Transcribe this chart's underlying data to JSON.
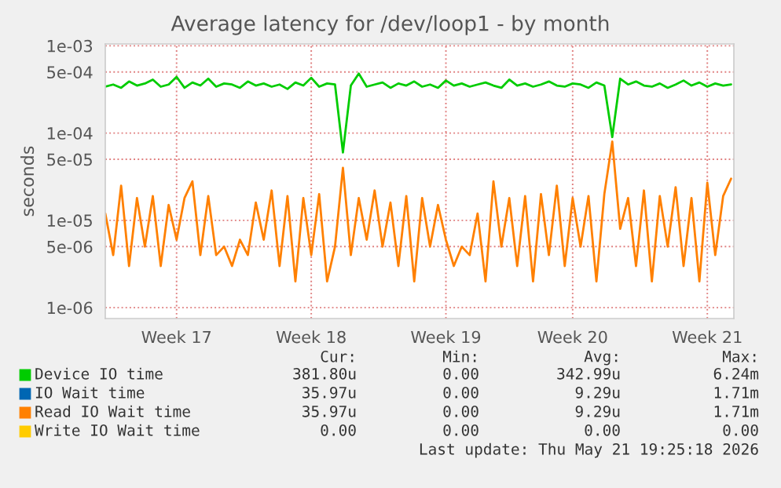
{
  "chart_data": {
    "type": "line",
    "title": "Average latency for /dev/loop1 - by month",
    "ylabel": "seconds",
    "log": "y",
    "categories": [
      null,
      null,
      null,
      null,
      null,
      null,
      null,
      null,
      null,
      "Week 17",
      null,
      null,
      null,
      null,
      null,
      null,
      null,
      null,
      null,
      null,
      null,
      null,
      null,
      null,
      null,
      null,
      "Week 18",
      null,
      null,
      null,
      null,
      null,
      null,
      null,
      null,
      null,
      null,
      null,
      null,
      null,
      null,
      null,
      null,
      "Week 19",
      null,
      null,
      null,
      null,
      null,
      null,
      null,
      null,
      null,
      null,
      null,
      null,
      null,
      null,
      null,
      "Week 20",
      null,
      null,
      null,
      null,
      null,
      null,
      null,
      null,
      null,
      null,
      null,
      null,
      null,
      null,
      null,
      null,
      "Week 21",
      null,
      null,
      null
    ],
    "series": [
      {
        "name": "Device IO time",
        "color": "#00cc00",
        "values": [
          0.00034,
          0.00036,
          0.00033,
          0.00039,
          0.00035,
          0.00037,
          0.00041,
          0.00034,
          0.00036,
          0.00044,
          0.00033,
          0.00038,
          0.00035,
          0.00042,
          0.00034,
          0.00037,
          0.00036,
          0.00033,
          0.00039,
          0.00035,
          0.00037,
          0.00034,
          0.00036,
          0.00032,
          0.00038,
          0.00035,
          0.00043,
          0.00034,
          0.00037,
          0.00036,
          6e-05,
          0.00035,
          0.00048,
          0.00034,
          0.00036,
          0.00038,
          0.00033,
          0.00037,
          0.00035,
          0.00039,
          0.00034,
          0.00036,
          0.00033,
          0.0004,
          0.00035,
          0.00037,
          0.00034,
          0.00036,
          0.00038,
          0.00035,
          0.00033,
          0.00041,
          0.00035,
          0.00037,
          0.00034,
          0.00036,
          0.00039,
          0.00035,
          0.00034,
          0.00037,
          0.00036,
          0.00033,
          0.00038,
          0.00035,
          9e-05,
          0.00042,
          0.00036,
          0.00039,
          0.00035,
          0.00034,
          0.00037,
          0.00033,
          0.00036,
          0.0004,
          0.00035,
          0.00038,
          0.00034,
          0.00037,
          0.00035,
          0.00036
        ]
      },
      {
        "name": "IO Wait time",
        "color": "#0066b3",
        "values": [
          null,
          null,
          null,
          null,
          null,
          null,
          null,
          null,
          null,
          null,
          null,
          null,
          null,
          null,
          null,
          null,
          null,
          null,
          null,
          null,
          null,
          null,
          null,
          null,
          null,
          null,
          null,
          null,
          null,
          null,
          null,
          null,
          null,
          null,
          null,
          null,
          null,
          null,
          null,
          null,
          null,
          null,
          null,
          null,
          null,
          null,
          null,
          null,
          null,
          null,
          null,
          null,
          null,
          null,
          null,
          null,
          null,
          null,
          null,
          null,
          null,
          null,
          null,
          null,
          null,
          null,
          null,
          null,
          null,
          null,
          null,
          null,
          null,
          null,
          null,
          null,
          null,
          null,
          null,
          null
        ]
      },
      {
        "name": "Read IO Wait time",
        "color": "#ff8000",
        "values": [
          1.2e-05,
          4e-06,
          2.5e-05,
          3e-06,
          1.8e-05,
          5e-06,
          1.9e-05,
          3e-06,
          1.5e-05,
          6e-06,
          1.8e-05,
          2.8e-05,
          4e-06,
          1.9e-05,
          4e-06,
          5e-06,
          3e-06,
          6e-06,
          4e-06,
          1.6e-05,
          6e-06,
          2.2e-05,
          3e-06,
          1.9e-05,
          2e-06,
          1.8e-05,
          4e-06,
          2e-05,
          2e-06,
          5e-06,
          4e-05,
          4e-06,
          1.8e-05,
          6e-06,
          2.2e-05,
          5e-06,
          1.6e-05,
          3e-06,
          1.9e-05,
          2e-06,
          1.8e-05,
          5e-06,
          1.5e-05,
          6e-06,
          3e-06,
          5e-06,
          4e-06,
          1.2e-05,
          2e-06,
          2.8e-05,
          5e-06,
          1.8e-05,
          3e-06,
          1.9e-05,
          2e-06,
          2e-05,
          4e-06,
          2.5e-05,
          3e-06,
          1.8e-05,
          5e-06,
          1.9e-05,
          2e-06,
          2e-05,
          8e-05,
          8e-06,
          1.8e-05,
          3e-06,
          2.2e-05,
          2e-06,
          1.9e-05,
          5e-06,
          2.4e-05,
          3e-06,
          1.8e-05,
          2e-06,
          2.7e-05,
          4e-06,
          1.9e-05,
          3e-05
        ]
      },
      {
        "name": "Write IO Wait time",
        "color": "#ffcc00",
        "values": [
          null,
          null,
          null,
          null,
          null,
          null,
          null,
          null,
          null,
          null,
          null,
          null,
          null,
          null,
          null,
          null,
          null,
          null,
          null,
          null,
          null,
          null,
          null,
          null,
          null,
          null,
          null,
          null,
          null,
          null,
          null,
          null,
          null,
          null,
          null,
          null,
          null,
          null,
          null,
          null,
          null,
          null,
          null,
          null,
          null,
          null,
          null,
          null,
          null,
          null,
          null,
          null,
          null,
          null,
          null,
          null,
          null,
          null,
          null,
          null,
          null,
          null,
          null,
          null,
          null,
          null,
          null,
          null,
          null,
          null,
          null,
          null,
          null,
          null,
          null,
          null,
          null,
          null,
          null,
          null
        ]
      }
    ],
    "ylim": [
      7.5e-07,
      0.00105
    ],
    "yticks": [
      {
        "value": 1e-06,
        "label": "1e-06"
      },
      {
        "value": 5e-06,
        "label": "5e-06"
      },
      {
        "value": 1e-05,
        "label": "1e-05"
      },
      {
        "value": 5e-05,
        "label": "5e-05"
      },
      {
        "value": 0.0001,
        "label": "1e-04"
      },
      {
        "value": 0.0005,
        "label": "5e-04"
      },
      {
        "value": 0.001,
        "label": "1e-03"
      }
    ],
    "grid": true,
    "legend": "bottom left",
    "annotations": [
      "Cur:",
      "Min:",
      "Avg:",
      "Max:",
      "381.80u",
      "0.00",
      "342.99u",
      "6.24m",
      "35.97u",
      "0.00",
      "9.29u",
      "1.71m",
      "35.97u",
      "0.00",
      "9.29u",
      "1.71m",
      "0.00",
      "0.00",
      "0.00",
      "0.00",
      "Last update: Thu May 21 19:25:18 2026"
    ]
  }
}
